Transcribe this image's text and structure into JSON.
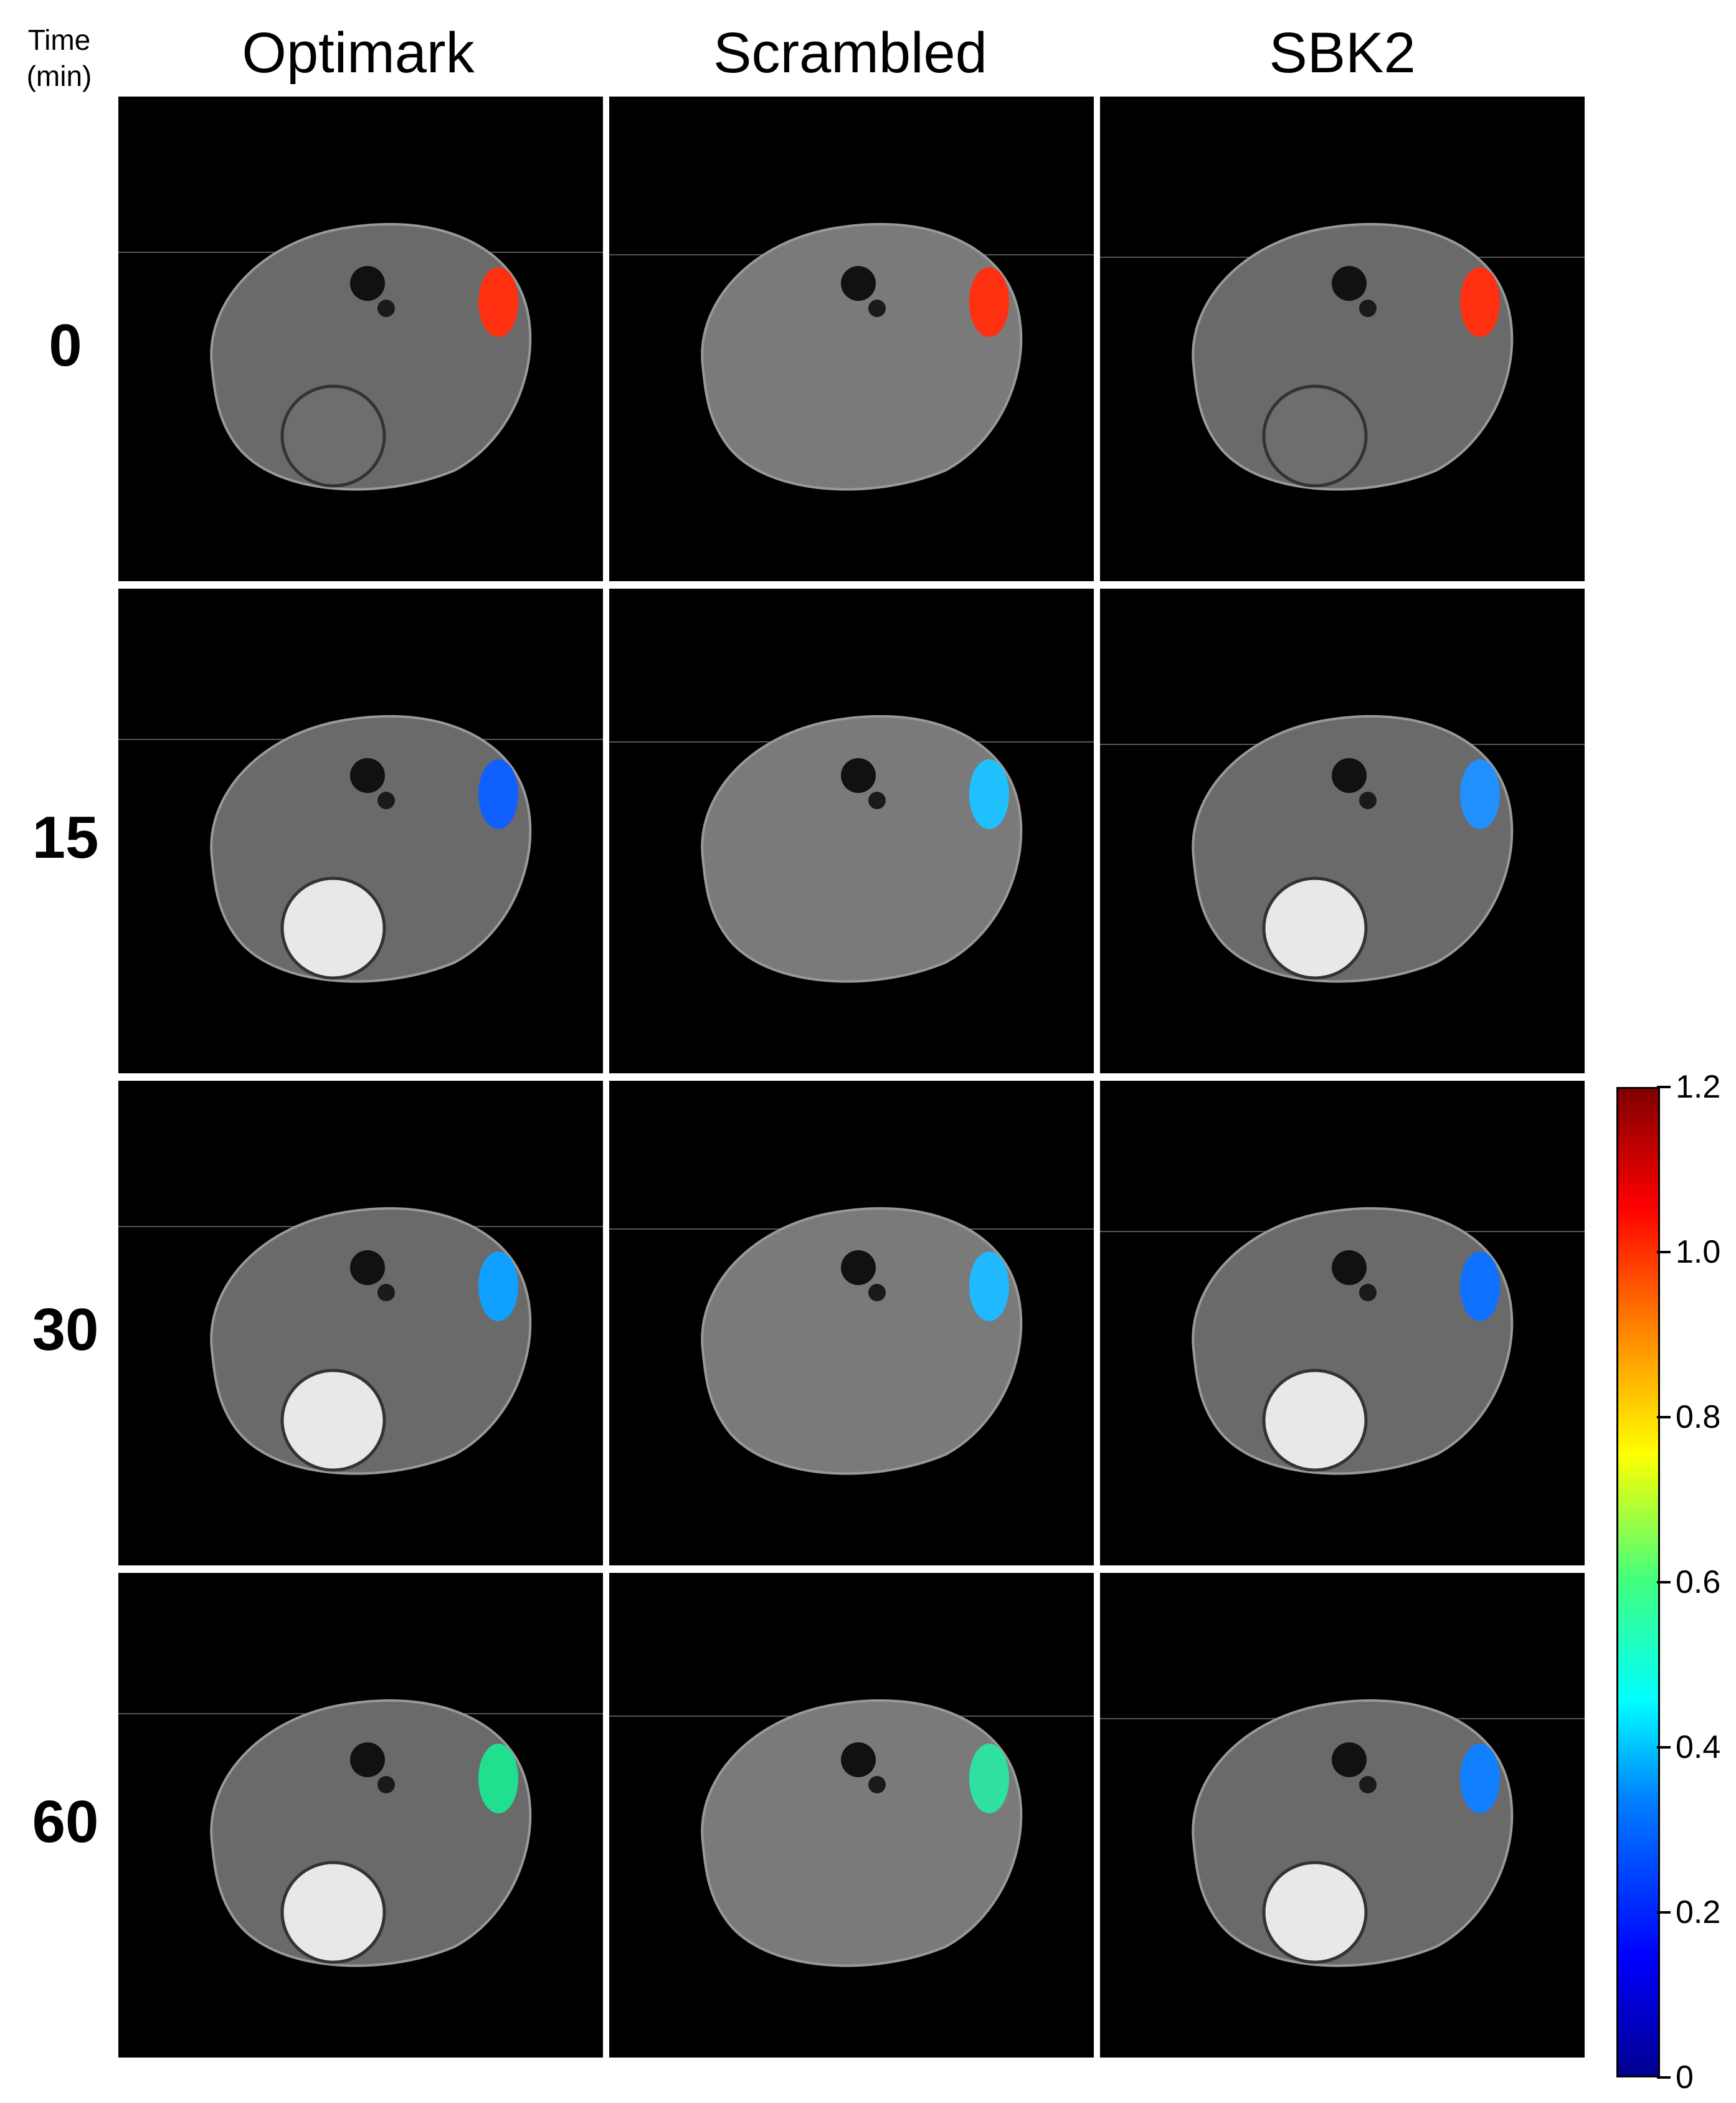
{
  "corner": {
    "line1": "Time",
    "line2": "(min)"
  },
  "columns": [
    "Optimark",
    "Scrambled",
    "SBK2"
  ],
  "rows": [
    "0",
    "15",
    "30",
    "60"
  ],
  "colorbar": {
    "ticks": [
      "1.2",
      "1.0",
      "0.8",
      "0.6",
      "0.4",
      "0.2",
      "0"
    ],
    "colors": [
      "#00008f",
      "#0000ff",
      "#0080ff",
      "#00ffff",
      "#40ff80",
      "#ffff00",
      "#ff8000",
      "#ff0000",
      "#800000"
    ]
  },
  "panels": [
    {
      "tumor_color": "#ff3010",
      "bladder_bright": false
    },
    {
      "tumor_color": "#ff3010",
      "bladder_bright": false
    },
    {
      "tumor_color": "#ff3010",
      "bladder_bright": false
    },
    {
      "tumor_color": "#1060ff",
      "bladder_bright": true
    },
    {
      "tumor_color": "#20c0ff",
      "bladder_bright": false
    },
    {
      "tumor_color": "#2090ff",
      "bladder_bright": true
    },
    {
      "tumor_color": "#10a0ff",
      "bladder_bright": true
    },
    {
      "tumor_color": "#20b8ff",
      "bladder_bright": false
    },
    {
      "tumor_color": "#1070ff",
      "bladder_bright": true
    },
    {
      "tumor_color": "#20e090",
      "bladder_bright": true
    },
    {
      "tumor_color": "#30e0a0",
      "bladder_bright": false
    },
    {
      "tumor_color": "#1080ff",
      "bladder_bright": true
    }
  ]
}
